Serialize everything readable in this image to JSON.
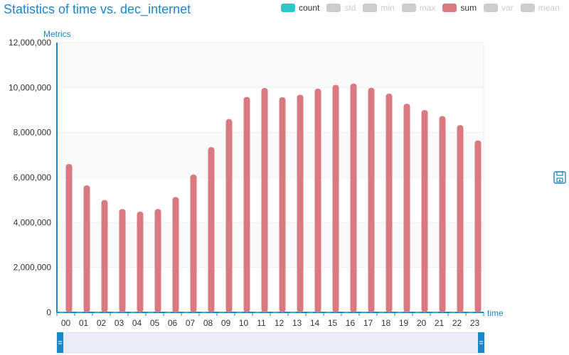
{
  "title": "Statistics of time vs. dec_internet",
  "legend": [
    {
      "name": "count",
      "color": "#2ec7c9",
      "active": true
    },
    {
      "name": "std",
      "color": "#cccccc",
      "active": false
    },
    {
      "name": "min",
      "color": "#cccccc",
      "active": false
    },
    {
      "name": "max",
      "color": "#cccccc",
      "active": false
    },
    {
      "name": "sum",
      "color": "#d87a80",
      "active": true
    },
    {
      "name": "var",
      "color": "#cccccc",
      "active": false
    },
    {
      "name": "mean",
      "color": "#cccccc",
      "active": false
    }
  ],
  "toolbox": {
    "icon": "save-icon"
  },
  "chart_data": {
    "type": "bar",
    "xlabel": "time",
    "ylabel": "Metrics",
    "ylim": [
      0,
      12000000
    ],
    "yticks": [
      0,
      2000000,
      4000000,
      6000000,
      8000000,
      10000000,
      12000000
    ],
    "ytick_labels": [
      "0",
      "2,000,000",
      "4,000,000",
      "6,000,000",
      "8,000,000",
      "10,000,000",
      "12,000,000"
    ],
    "categories": [
      "00",
      "01",
      "02",
      "03",
      "04",
      "05",
      "06",
      "07",
      "08",
      "09",
      "10",
      "11",
      "12",
      "13",
      "14",
      "15",
      "16",
      "17",
      "18",
      "19",
      "20",
      "21",
      "22",
      "23"
    ],
    "series": [
      {
        "name": "count",
        "color": "#2ec7c9",
        "values": [
          24000,
          24000,
          24000,
          24000,
          24000,
          24000,
          24000,
          24000,
          24000,
          24000,
          24000,
          24000,
          24000,
          24000,
          24000,
          24000,
          24000,
          24000,
          24000,
          24000,
          24000,
          24000,
          24000,
          24000
        ]
      },
      {
        "name": "sum",
        "color": "#d87a80",
        "values": [
          6600000,
          5650000,
          5000000,
          4600000,
          4480000,
          4600000,
          5130000,
          6130000,
          7350000,
          8600000,
          9580000,
          9980000,
          9570000,
          9680000,
          9950000,
          10120000,
          10180000,
          9990000,
          9730000,
          9280000,
          9000000,
          8730000,
          8330000,
          7650000
        ]
      }
    ],
    "grid": true,
    "legend_position": "top-right",
    "datazoom": {
      "start": 0,
      "end": 100
    }
  }
}
